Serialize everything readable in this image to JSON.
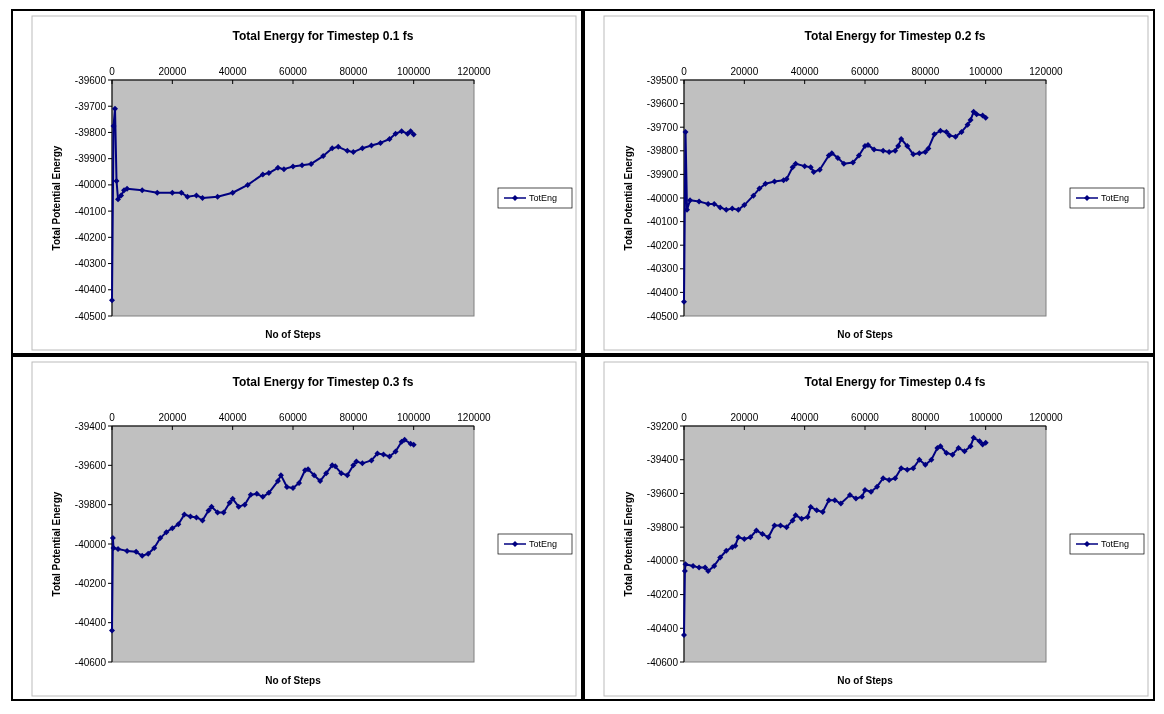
{
  "chart_data": [
    {
      "type": "line",
      "title": "Total Energy for Timestep 0.1 fs",
      "xlabel": "No of Steps",
      "ylabel": "Total Potential Energy",
      "xlim": [
        0,
        120000
      ],
      "xticks": [
        0,
        20000,
        40000,
        60000,
        80000,
        100000,
        120000
      ],
      "ylim": [
        -40500,
        -39600
      ],
      "yticks": [
        -40500,
        -40400,
        -40300,
        -40200,
        -40100,
        -40000,
        -39900,
        -39800,
        -39700,
        -39600
      ],
      "legend": "right",
      "marker": "diamond",
      "grid": false,
      "x": [
        0,
        500,
        1000,
        1500,
        2000,
        3000,
        4000,
        5000,
        10000,
        15000,
        20000,
        23000,
        25000,
        28000,
        30000,
        35000,
        40000,
        45000,
        50000,
        52000,
        55000,
        57000,
        60000,
        63000,
        66000,
        70000,
        73000,
        75000,
        78000,
        80000,
        83000,
        86000,
        89000,
        92000,
        94000,
        96000,
        98000,
        99000,
        100000
      ],
      "series": [
        {
          "name": "TotEng",
          "color": "#000080",
          "values": [
            -40440,
            -39775,
            -39710,
            -39985,
            -40055,
            -40040,
            -40020,
            -40015,
            -40020,
            -40030,
            -40030,
            -40030,
            -40045,
            -40040,
            -40050,
            -40045,
            -40030,
            -40000,
            -39960,
            -39955,
            -39935,
            -39940,
            -39930,
            -39925,
            -39920,
            -39890,
            -39860,
            -39855,
            -39870,
            -39875,
            -39860,
            -39850,
            -39840,
            -39825,
            -39805,
            -39795,
            -39805,
            -39795,
            -39808
          ]
        }
      ]
    },
    {
      "type": "line",
      "title": "Total Energy for Timestep 0.2 fs",
      "xlabel": "No of Steps",
      "ylabel": "Total Potential Energy",
      "xlim": [
        0,
        120000
      ],
      "xticks": [
        0,
        20000,
        40000,
        60000,
        80000,
        100000,
        120000
      ],
      "ylim": [
        -40500,
        -39500
      ],
      "yticks": [
        -40500,
        -40400,
        -40300,
        -40200,
        -40100,
        -40000,
        -39900,
        -39800,
        -39700,
        -39600,
        -39500
      ],
      "legend": "right",
      "marker": "diamond",
      "grid": false,
      "x": [
        0,
        500,
        1000,
        2000,
        5000,
        8000,
        10000,
        12000,
        14000,
        16000,
        18000,
        20000,
        23000,
        25000,
        27000,
        30000,
        33000,
        34000,
        36000,
        37000,
        40000,
        42000,
        43000,
        45000,
        48000,
        49000,
        51000,
        53000,
        56000,
        58000,
        60000,
        61000,
        63000,
        66000,
        68000,
        70000,
        71000,
        72000,
        74000,
        76000,
        78000,
        80000,
        81000,
        83000,
        85000,
        87000,
        88000,
        90000,
        92000,
        94000,
        95000,
        96000,
        97000,
        99000,
        100000
      ],
      "series": [
        {
          "name": "TotEng",
          "color": "#000080",
          "values": [
            -40440,
            -39720,
            -40050,
            -40010,
            -40015,
            -40025,
            -40025,
            -40040,
            -40050,
            -40045,
            -40050,
            -40030,
            -39990,
            -39960,
            -39940,
            -39930,
            -39925,
            -39920,
            -39870,
            -39855,
            -39865,
            -39870,
            -39890,
            -39880,
            -39820,
            -39810,
            -39830,
            -39855,
            -39850,
            -39820,
            -39780,
            -39775,
            -39795,
            -39800,
            -39805,
            -39800,
            -39780,
            -39750,
            -39780,
            -39815,
            -39810,
            -39805,
            -39790,
            -39730,
            -39715,
            -39720,
            -39735,
            -39740,
            -39720,
            -39690,
            -39670,
            -39635,
            -39645,
            -39650,
            -39660
          ]
        }
      ]
    },
    {
      "type": "line",
      "title": "Total Energy for Timestep 0.3 fs",
      "xlabel": "No of Steps",
      "ylabel": "Total Potential Energy",
      "xlim": [
        0,
        120000
      ],
      "xticks": [
        0,
        20000,
        40000,
        60000,
        80000,
        100000,
        120000
      ],
      "ylim": [
        -40600,
        -39400
      ],
      "yticks": [
        -40600,
        -40400,
        -40200,
        -40000,
        -39800,
        -39600,
        -39400
      ],
      "legend": "right",
      "marker": "diamond",
      "grid": false,
      "x": [
        0,
        300,
        500,
        2000,
        5000,
        8000,
        10000,
        12000,
        14000,
        16000,
        18000,
        20000,
        22000,
        24000,
        26000,
        28000,
        30000,
        32000,
        33000,
        35000,
        37000,
        39000,
        40000,
        42000,
        44000,
        46000,
        48000,
        50000,
        52000,
        55000,
        56000,
        58000,
        60000,
        62000,
        64000,
        65000,
        67000,
        69000,
        71000,
        73000,
        74000,
        76000,
        78000,
        80000,
        81000,
        83000,
        86000,
        88000,
        90000,
        92000,
        94000,
        96000,
        97000,
        99000,
        100000
      ],
      "series": [
        {
          "name": "TotEng",
          "color": "#000080",
          "values": [
            -40440,
            -39970,
            -40020,
            -40025,
            -40035,
            -40040,
            -40060,
            -40050,
            -40020,
            -39970,
            -39940,
            -39920,
            -39900,
            -39850,
            -39860,
            -39865,
            -39880,
            -39830,
            -39810,
            -39840,
            -39840,
            -39790,
            -39770,
            -39810,
            -39800,
            -39750,
            -39745,
            -39760,
            -39740,
            -39680,
            -39650,
            -39710,
            -39715,
            -39690,
            -39625,
            -39620,
            -39650,
            -39680,
            -39640,
            -39600,
            -39605,
            -39640,
            -39650,
            -39600,
            -39580,
            -39590,
            -39575,
            -39540,
            -39545,
            -39555,
            -39530,
            -39480,
            -39470,
            -39490,
            -39495
          ]
        }
      ]
    },
    {
      "type": "line",
      "title": "Total Energy for Timestep 0.4 fs",
      "xlabel": "No of Steps",
      "ylabel": "Total Potential Energy",
      "xlim": [
        0,
        120000
      ],
      "xticks": [
        0,
        20000,
        40000,
        60000,
        80000,
        100000,
        120000
      ],
      "ylim": [
        -40600,
        -39200
      ],
      "yticks": [
        -40600,
        -40400,
        -40200,
        -40000,
        -39800,
        -39600,
        -39400,
        -39200
      ],
      "legend": "right",
      "marker": "diamond",
      "grid": false,
      "x": [
        0,
        300,
        500,
        3000,
        5000,
        7000,
        8000,
        10000,
        12000,
        14000,
        16000,
        17000,
        18000,
        20000,
        22000,
        24000,
        26000,
        28000,
        30000,
        32000,
        34000,
        36000,
        37000,
        39000,
        41000,
        42000,
        44000,
        46000,
        48000,
        50000,
        52000,
        55000,
        57000,
        59000,
        60000,
        62000,
        64000,
        66000,
        68000,
        70000,
        72000,
        74000,
        76000,
        78000,
        80000,
        82000,
        84000,
        85000,
        87000,
        89000,
        91000,
        93000,
        95000,
        96000,
        98000,
        99000,
        100000
      ],
      "series": [
        {
          "name": "TotEng",
          "color": "#000080",
          "values": [
            -40440,
            -40060,
            -40020,
            -40030,
            -40040,
            -40040,
            -40060,
            -40030,
            -39980,
            -39940,
            -39920,
            -39910,
            -39860,
            -39870,
            -39860,
            -39820,
            -39840,
            -39860,
            -39790,
            -39790,
            -39800,
            -39760,
            -39730,
            -39750,
            -39740,
            -39680,
            -39700,
            -39710,
            -39640,
            -39640,
            -39660,
            -39610,
            -39630,
            -39620,
            -39580,
            -39590,
            -39560,
            -39510,
            -39520,
            -39510,
            -39450,
            -39460,
            -39450,
            -39400,
            -39430,
            -39400,
            -39330,
            -39320,
            -39360,
            -39370,
            -39330,
            -39350,
            -39320,
            -39270,
            -39290,
            -39310,
            -39300
          ]
        }
      ]
    }
  ]
}
